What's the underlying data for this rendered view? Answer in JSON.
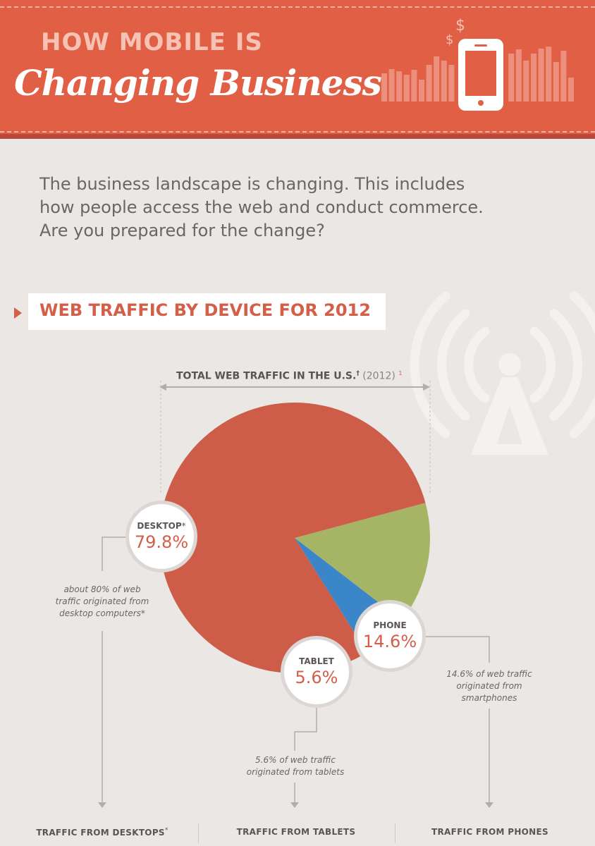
{
  "header": {
    "title_top": "HOW MOBILE IS",
    "title_script": "Changing Business"
  },
  "intro": {
    "text": "The business landscape is changing. This includes how people access the web and conduct commerce. Are you prepared for the change?"
  },
  "section": {
    "title": "WEB TRAFFIC BY DEVICE FOR 2012"
  },
  "chart_data": {
    "type": "pie",
    "title": "TOTAL WEB TRAFFIC IN THE U.S.",
    "title_mark": "†",
    "year_note": "(2012)",
    "footnote_mark": "1",
    "slices": [
      {
        "name": "Desktop",
        "label": "DESKTOP",
        "label_mark": "*",
        "value": 79.8,
        "value_text": "79.8%",
        "color": "#cd5d49",
        "note": "about 80% of web traffic originated from desktop computers*"
      },
      {
        "name": "Phone",
        "label": "PHONE",
        "label_mark": "",
        "value": 14.6,
        "value_text": "14.6%",
        "color": "#a5b565",
        "note": "14.6% of web traffic originated from smartphones"
      },
      {
        "name": "Tablet",
        "label": "TABLET",
        "label_mark": "",
        "value": 5.6,
        "value_text": "5.6%",
        "color": "#3a86c8",
        "note": "5.6% of web traffic originated from tablets"
      }
    ]
  },
  "footer": {
    "desktops": "TRAFFIC FROM DESKTOPS",
    "desktops_mark": "*",
    "tablets": "TRAFFIC FROM TABLETS",
    "phones": "TRAFFIC FROM PHONES"
  },
  "colors": {
    "header_bg": "#e05f45",
    "accent": "#d45f48",
    "background": "#ebe7e5"
  },
  "icons": {
    "header": "smartphone-icon",
    "tower": "signal-tower-icon"
  }
}
